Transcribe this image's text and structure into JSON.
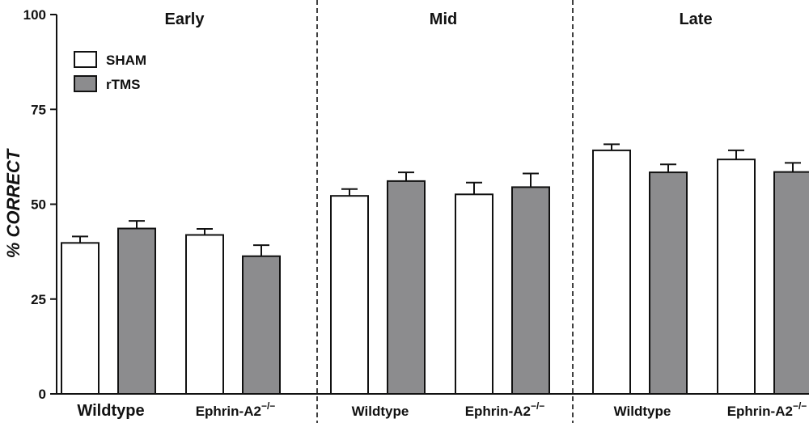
{
  "chart_data": {
    "type": "bar",
    "ylabel": "% CORRECT",
    "ylim": [
      0,
      100
    ],
    "yticks": [
      "0",
      "25",
      "50",
      "75",
      "100"
    ],
    "phases": [
      "Early",
      "Mid",
      "Late"
    ],
    "categories": [
      {
        "phase": "Early",
        "base": "Wildtype",
        "sup": ""
      },
      {
        "phase": "Early",
        "base": "Ephrin-A2",
        "sup": "−/−"
      },
      {
        "phase": "Mid",
        "base": "Wildtype",
        "sup": ""
      },
      {
        "phase": "Mid",
        "base": "Ephrin-A2",
        "sup": "−/−"
      },
      {
        "phase": "Late",
        "base": "Wildtype",
        "sup": ""
      },
      {
        "phase": "Late",
        "base": "Ephrin-A2",
        "sup": "−/−"
      }
    ],
    "series": [
      {
        "name": "SHAM",
        "color": "#ffffff",
        "values": [
          39.8,
          41.9,
          52.2,
          52.6,
          64.2,
          61.8
        ],
        "errors": [
          1.7,
          1.6,
          1.8,
          3.1,
          1.6,
          2.4
        ]
      },
      {
        "name": "rTMS",
        "color": "#8c8c8e",
        "values": [
          43.6,
          36.3,
          56.1,
          54.5,
          58.4,
          58.5
        ],
        "errors": [
          2.0,
          2.9,
          2.3,
          3.6,
          2.1,
          2.4
        ]
      }
    ],
    "legend_position": "top-left"
  }
}
